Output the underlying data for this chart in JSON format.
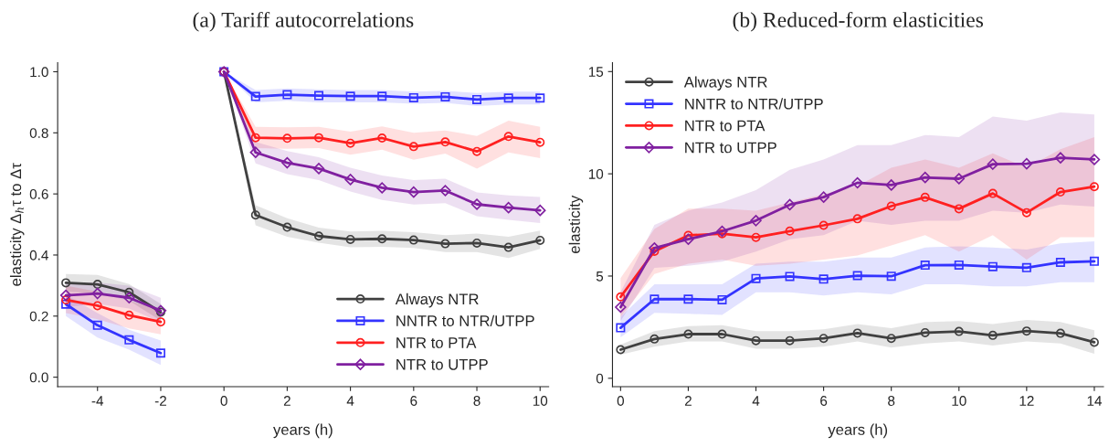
{
  "chart_data": [
    {
      "type": "line",
      "title": "(a) Tariff autocorrelations",
      "xlabel": "years (h)",
      "ylabel": "elasticity Δ$_{h}$τ to Δτ",
      "x": [
        -5,
        -4,
        -3,
        -2,
        -1,
        0,
        1,
        2,
        3,
        4,
        5,
        6,
        7,
        8,
        9,
        10
      ],
      "xlim": [
        -5.26,
        10.27
      ],
      "ylim": [
        -0.031,
        1.03
      ],
      "xticks": [
        -4,
        -2,
        0,
        2,
        4,
        6,
        8,
        10
      ],
      "yticks": [
        {
          "value": 0,
          "label": "0.0"
        },
        {
          "value": 0.2,
          "label": "0.2"
        },
        {
          "value": 0.4,
          "label": "0.4"
        },
        {
          "value": 0.6,
          "label": "0.6"
        },
        {
          "value": 0.8,
          "label": "0.8"
        },
        {
          "value": 1,
          "label": "1.0"
        }
      ],
      "legend": "bottom right",
      "grid": false,
      "series": [
        {
          "name": "Always NTR",
          "color": "#404040",
          "marker": "circle",
          "values": [
            0.309,
            0.304,
            0.278,
            0.213,
            null,
            1.0,
            0.531,
            0.491,
            0.462,
            0.451,
            0.453,
            0.449,
            0.437,
            0.439,
            0.425,
            0.448
          ],
          "lower": [
            0.28,
            0.275,
            0.25,
            0.185,
            null,
            1.0,
            0.497,
            0.46,
            0.44,
            0.425,
            0.427,
            0.423,
            0.41,
            0.41,
            0.39,
            0.42
          ],
          "upper": [
            0.338,
            0.335,
            0.305,
            0.24,
            null,
            1.0,
            0.563,
            0.52,
            0.49,
            0.477,
            0.479,
            0.475,
            0.465,
            0.47,
            0.46,
            0.48
          ]
        },
        {
          "name": "NNTR to NTR/UTPP",
          "color": "#3333ff",
          "marker": "square",
          "values": [
            0.239,
            0.17,
            0.122,
            0.079,
            null,
            1.0,
            0.919,
            0.925,
            0.922,
            0.92,
            0.92,
            0.915,
            0.918,
            0.909,
            0.914,
            0.914
          ],
          "lower": [
            0.2,
            0.13,
            0.09,
            0.04,
            null,
            1.0,
            0.9,
            0.905,
            0.9,
            0.9,
            0.9,
            0.895,
            0.898,
            0.888,
            0.893,
            0.893
          ],
          "upper": [
            0.27,
            0.21,
            0.155,
            0.12,
            null,
            1.0,
            0.94,
            0.945,
            0.942,
            0.94,
            0.94,
            0.935,
            0.938,
            0.93,
            0.935,
            0.935
          ]
        },
        {
          "name": "NTR to PTA",
          "color": "#ff2020",
          "marker": "circle",
          "values": [
            0.253,
            0.234,
            0.203,
            0.181,
            null,
            1.0,
            0.784,
            0.782,
            0.784,
            0.766,
            0.783,
            0.755,
            0.77,
            0.739,
            0.788,
            0.769
          ],
          "lower": [
            0.21,
            0.19,
            0.16,
            0.14,
            null,
            1.0,
            0.75,
            0.748,
            0.75,
            0.728,
            0.745,
            0.712,
            0.732,
            0.683,
            0.736,
            0.717
          ],
          "upper": [
            0.3,
            0.28,
            0.25,
            0.22,
            null,
            1.0,
            0.82,
            0.818,
            0.82,
            0.804,
            0.821,
            0.8,
            0.808,
            0.79,
            0.84,
            0.82
          ]
        },
        {
          "name": "NTR to UTPP",
          "color": "#8020a0",
          "marker": "diamond",
          "values": [
            0.268,
            0.274,
            0.26,
            0.218,
            null,
            1.0,
            0.736,
            0.702,
            0.683,
            0.647,
            0.62,
            0.606,
            0.611,
            0.566,
            0.555,
            0.546
          ],
          "lower": [
            0.23,
            0.24,
            0.225,
            0.18,
            null,
            1.0,
            0.7,
            0.665,
            0.645,
            0.608,
            0.58,
            0.565,
            0.57,
            0.527,
            0.515,
            0.505
          ],
          "upper": [
            0.31,
            0.31,
            0.3,
            0.26,
            null,
            1.0,
            0.77,
            0.74,
            0.72,
            0.686,
            0.66,
            0.645,
            0.65,
            0.605,
            0.595,
            0.59
          ]
        }
      ]
    },
    {
      "type": "line",
      "title": "(b) Reduced-form elasticities",
      "xlabel": "years (h)",
      "ylabel": "elasticity",
      "x": [
        0,
        1,
        2,
        3,
        4,
        5,
        6,
        7,
        8,
        9,
        10,
        11,
        12,
        13,
        14
      ],
      "xlim": [
        -0.24,
        14.27
      ],
      "ylim": [
        -0.41,
        15.44
      ],
      "xticks": [
        0,
        2,
        4,
        6,
        8,
        10,
        12,
        14
      ],
      "yticks": [
        0,
        5,
        10,
        15
      ],
      "legend": "top left",
      "grid": false,
      "series": [
        {
          "name": "Always NTR",
          "color": "#404040",
          "marker": "circle",
          "values": [
            1.4,
            1.92,
            2.16,
            2.16,
            1.84,
            1.84,
            1.95,
            2.21,
            1.95,
            2.23,
            2.29,
            2.1,
            2.31,
            2.2,
            1.76
          ],
          "lower": [
            1.15,
            1.55,
            1.8,
            1.8,
            1.45,
            1.45,
            1.55,
            1.8,
            1.5,
            1.7,
            1.8,
            1.6,
            1.8,
            1.7,
            1.2
          ],
          "upper": [
            1.65,
            2.3,
            2.55,
            2.6,
            2.3,
            2.3,
            2.4,
            2.65,
            2.45,
            2.75,
            2.8,
            2.65,
            2.85,
            2.75,
            2.35
          ]
        },
        {
          "name": "NNTR to NTR/UTPP",
          "color": "#3333ff",
          "marker": "square",
          "values": [
            2.47,
            3.87,
            3.87,
            3.84,
            4.88,
            4.98,
            4.85,
            5.02,
            4.99,
            5.53,
            5.54,
            5.46,
            5.41,
            5.67,
            5.72
          ],
          "lower": [
            2.0,
            3.2,
            3.15,
            3.1,
            4.2,
            4.2,
            4.05,
            4.2,
            4.1,
            4.6,
            4.6,
            4.5,
            4.5,
            4.7,
            4.7
          ],
          "upper": [
            3.0,
            4.6,
            4.6,
            4.6,
            5.6,
            5.7,
            5.7,
            5.9,
            5.9,
            6.4,
            6.45,
            6.4,
            6.3,
            6.6,
            6.7
          ]
        },
        {
          "name": "NTR to PTA",
          "color": "#ff2020",
          "marker": "circle",
          "values": [
            3.98,
            6.21,
            6.99,
            7.07,
            6.89,
            7.2,
            7.48,
            7.8,
            8.42,
            8.85,
            8.29,
            9.04,
            8.1,
            9.11,
            9.37
          ],
          "lower": [
            3.0,
            5.1,
            5.6,
            5.8,
            5.5,
            5.6,
            5.8,
            6.0,
            6.5,
            7.0,
            6.2,
            7.0,
            5.8,
            6.9,
            6.9
          ],
          "upper": [
            4.9,
            7.3,
            8.3,
            8.3,
            8.2,
            8.6,
            9.0,
            9.4,
            10.3,
            10.7,
            10.3,
            11.0,
            10.3,
            11.2,
            11.8
          ]
        },
        {
          "name": "NTR to UTPP",
          "color": "#8020a0",
          "marker": "diamond",
          "values": [
            3.48,
            6.37,
            6.8,
            7.19,
            7.71,
            8.49,
            8.86,
            9.56,
            9.45,
            9.82,
            9.76,
            10.47,
            10.49,
            10.78,
            10.7
          ],
          "lower": [
            2.8,
            5.4,
            5.5,
            5.7,
            6.2,
            6.8,
            7.0,
            7.7,
            7.5,
            7.7,
            7.7,
            8.2,
            8.1,
            8.5,
            8.4
          ],
          "upper": [
            4.2,
            7.5,
            8.2,
            8.6,
            9.2,
            10.2,
            10.7,
            11.4,
            11.4,
            11.9,
            11.8,
            12.8,
            12.6,
            13.0,
            12.9
          ]
        }
      ]
    }
  ]
}
